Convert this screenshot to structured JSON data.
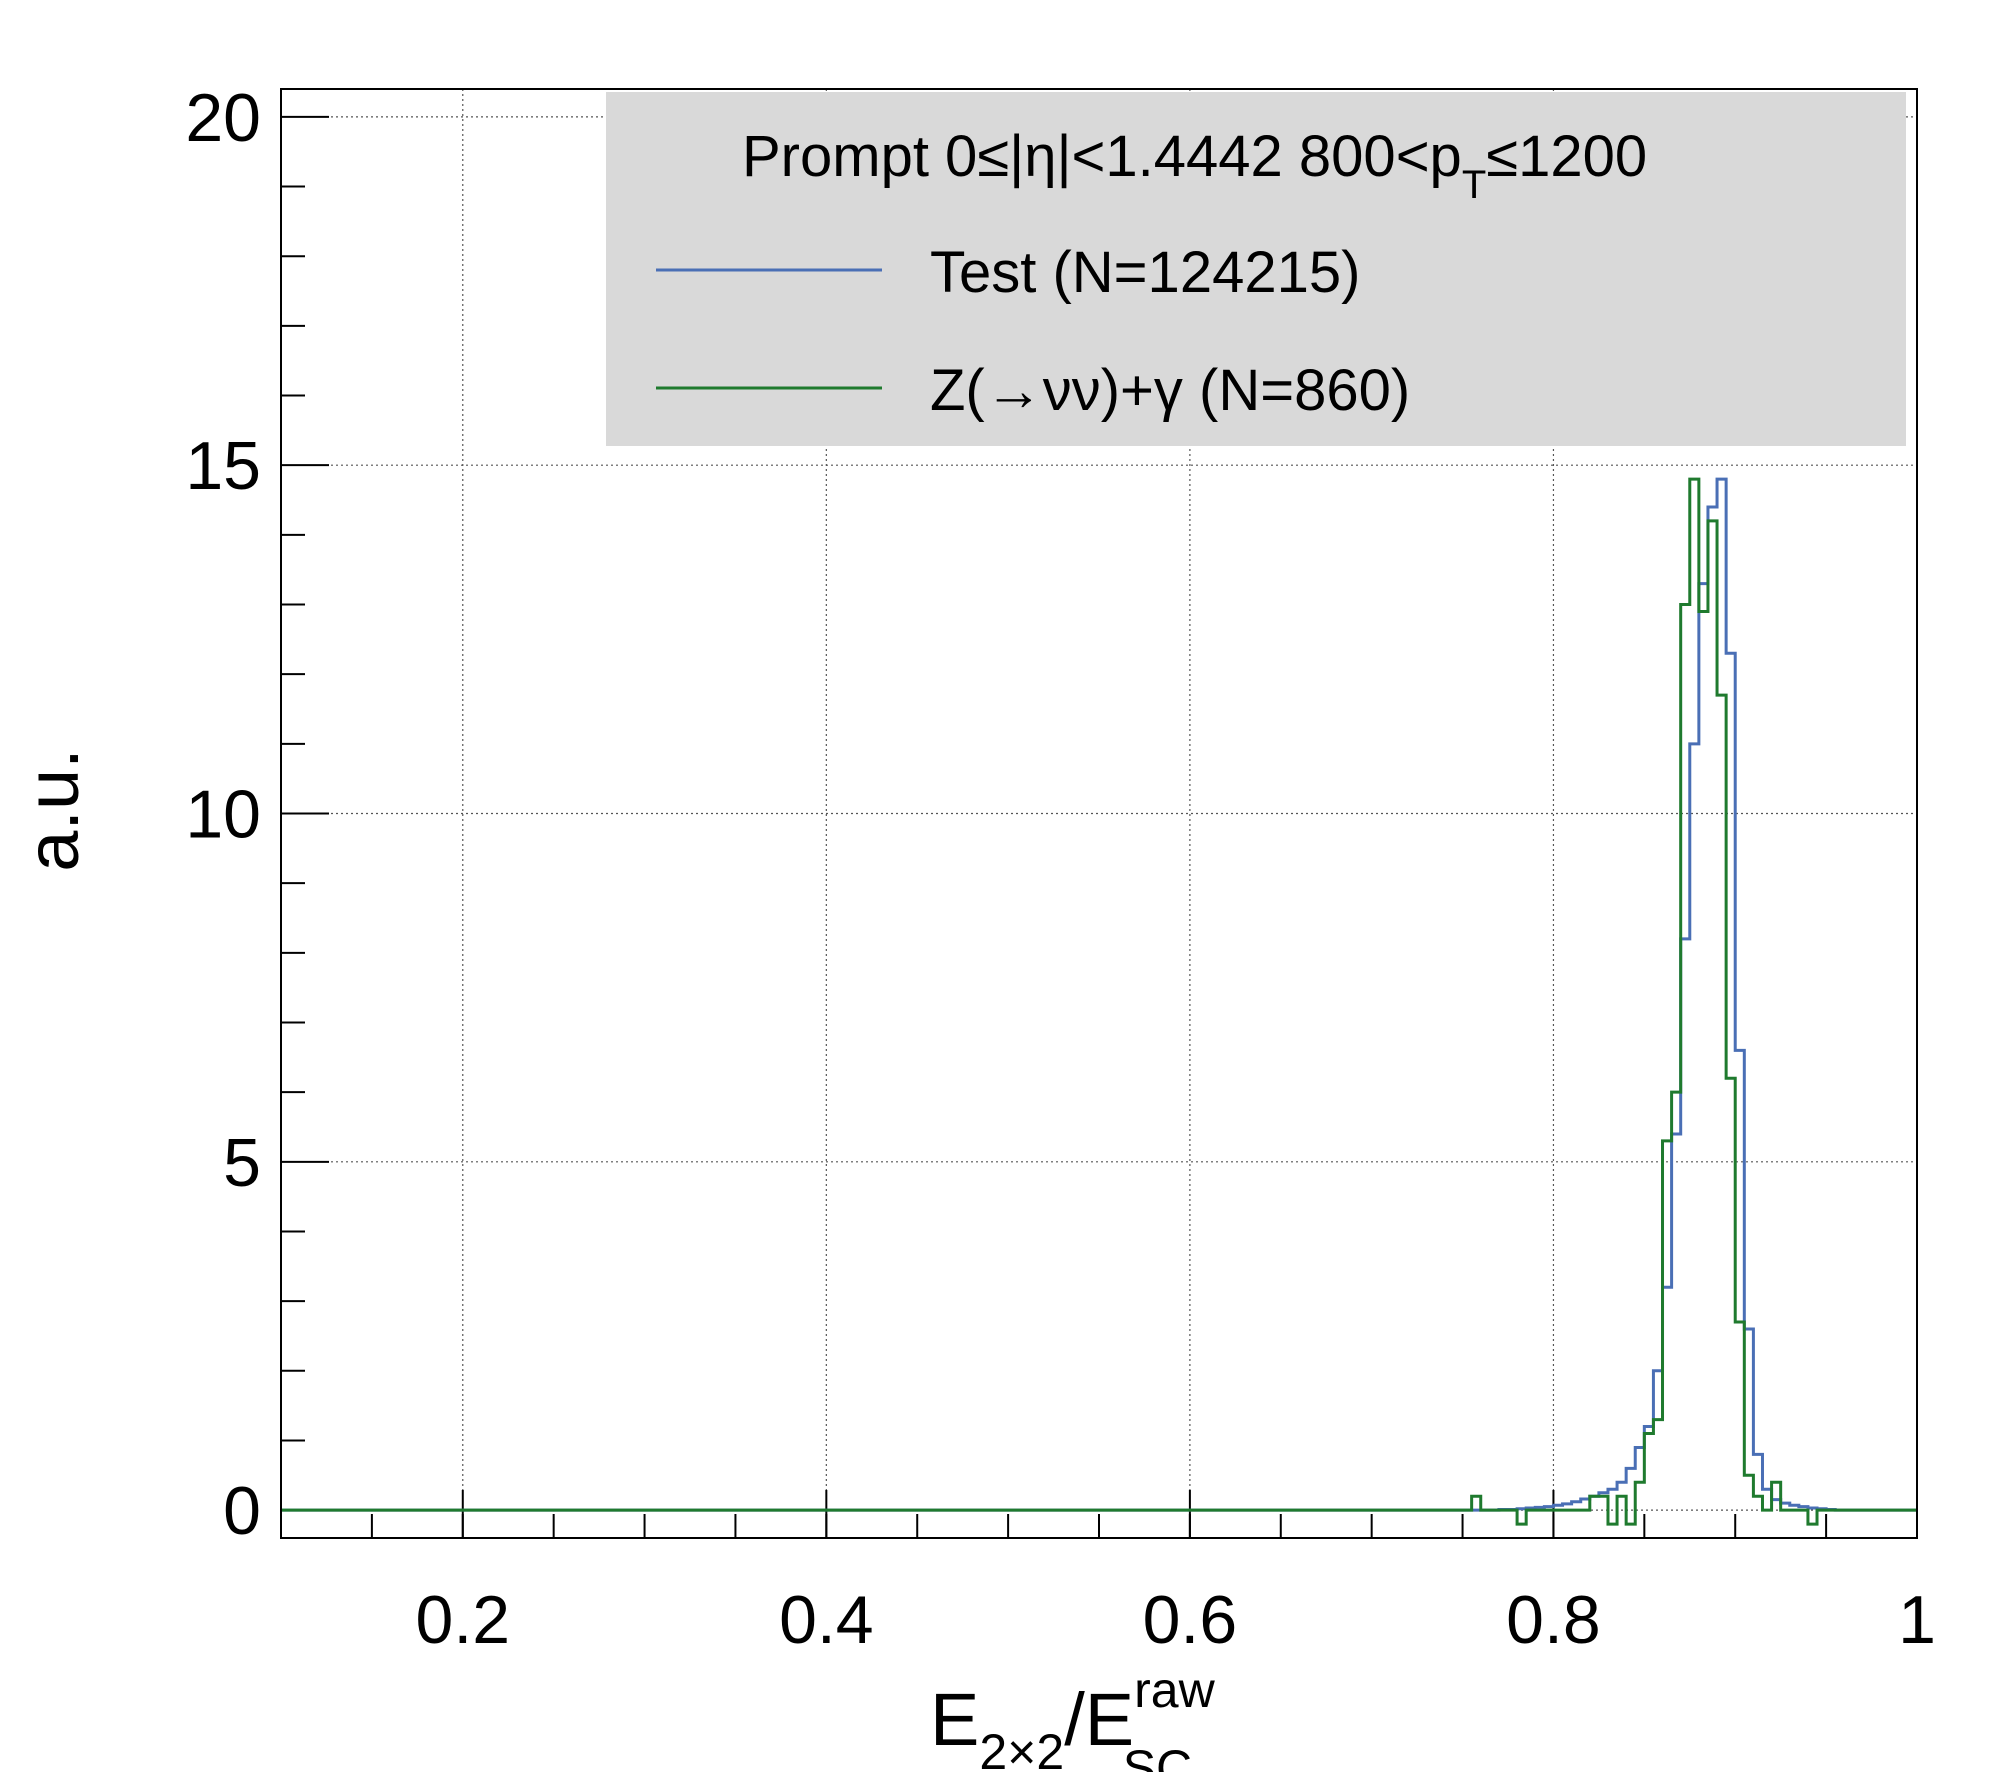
{
  "chart_data": {
    "type": "line",
    "title": "",
    "legend_header": {
      "prefix": "Prompt  0≤|η|<1.4442  800<p",
      "sub": "T",
      "suffix": "≤1200"
    },
    "xlabel": {
      "base": "E",
      "sub1": "2×2",
      "slash": "/E",
      "sup": "raw",
      "sub2": "SC"
    },
    "ylabel": "a.u.",
    "xlim": [
      0.1,
      1.0
    ],
    "ylim": [
      -0.4,
      20.4
    ],
    "x_ticks": [
      0.2,
      0.4,
      0.6,
      0.8,
      1.0
    ],
    "x_tick_labels": [
      "0.2",
      "0.4",
      "0.6",
      "0.8",
      "1"
    ],
    "y_ticks": [
      0,
      5,
      10,
      15,
      20
    ],
    "y_tick_labels": [
      "0",
      "5",
      "10",
      "15",
      "20"
    ],
    "grid": true,
    "legend_position": "top-right",
    "bins": [
      0.755,
      0.76,
      0.765,
      0.77,
      0.775,
      0.78,
      0.785,
      0.79,
      0.795,
      0.8,
      0.805,
      0.81,
      0.815,
      0.82,
      0.825,
      0.83,
      0.835,
      0.84,
      0.845,
      0.85,
      0.855,
      0.86,
      0.865,
      0.87,
      0.875,
      0.88,
      0.885,
      0.89,
      0.895,
      0.9,
      0.905,
      0.91,
      0.915,
      0.92,
      0.925,
      0.93,
      0.935,
      0.94,
      0.945,
      0.95,
      0.955,
      0.96
    ],
    "series": [
      {
        "name": "Test (N=124215)",
        "color": "#4a6fb5",
        "values": [
          0.0,
          0.0,
          0.0,
          0.01,
          0.01,
          0.02,
          0.03,
          0.04,
          0.05,
          0.07,
          0.09,
          0.12,
          0.16,
          0.2,
          0.25,
          0.3,
          0.4,
          0.6,
          0.9,
          1.2,
          2.0,
          3.2,
          5.4,
          8.2,
          11.0,
          13.3,
          14.4,
          14.8,
          12.3,
          6.6,
          2.6,
          0.8,
          0.3,
          0.15,
          0.1,
          0.07,
          0.05,
          0.03,
          0.02,
          0.01,
          0.0,
          0.0
        ]
      },
      {
        "name": "Z(→νν)+γ (N=860)",
        "color": "#1f7a2e",
        "values": [
          0.2,
          0.0,
          0.0,
          0.0,
          0.0,
          -0.2,
          0.0,
          0.0,
          0.0,
          0.0,
          0.0,
          0.0,
          0.0,
          0.2,
          0.2,
          -0.2,
          0.2,
          -0.2,
          0.4,
          1.1,
          1.3,
          5.3,
          6.0,
          13.0,
          14.8,
          12.9,
          14.2,
          11.7,
          6.2,
          2.7,
          0.5,
          0.2,
          0.0,
          0.4,
          0.0,
          0.0,
          0.0,
          -0.2,
          0.0,
          0.0,
          0.0,
          0.0
        ]
      }
    ]
  }
}
